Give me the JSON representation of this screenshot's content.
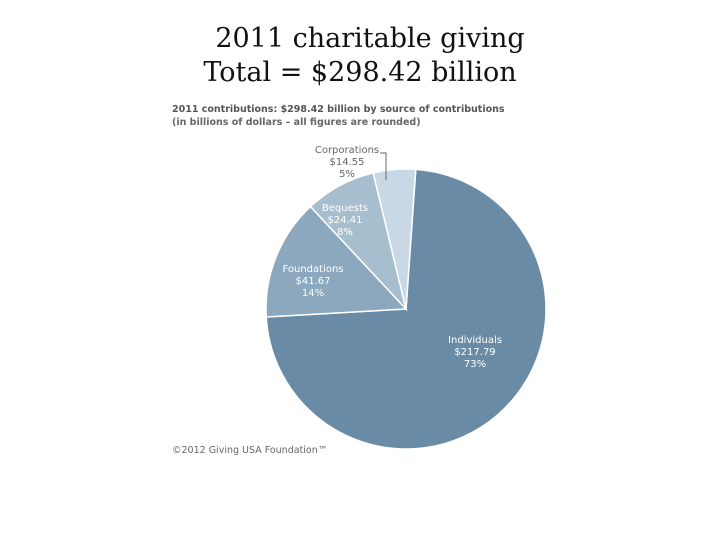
{
  "slide": {
    "title_line1": "2011 charitable giving",
    "title_line2": "Total = $298.42 billion"
  },
  "chart_data": {
    "type": "pie",
    "title": "2011 contributions: $298.42 billion by source of contributions",
    "subtitle": "(in billions of dollars – all figures are rounded)",
    "unit": "billions of dollars",
    "slices": [
      {
        "name": "Individuals",
        "value": 217.79,
        "value_label": "$217.79",
        "percent_label": "73%",
        "color": "#6a8ba6"
      },
      {
        "name": "Foundations",
        "value": 41.67,
        "value_label": "$41.67",
        "percent_label": "14%",
        "color": "#8ba8bf"
      },
      {
        "name": "Bequests",
        "value": 24.41,
        "value_label": "$24.41",
        "percent_label": "8%",
        "color": "#a6bece"
      },
      {
        "name": "Corporations",
        "value": 14.55,
        "value_label": "$14.55",
        "percent_label": "5%",
        "color": "#c8d9e5"
      }
    ],
    "footer": "©2012 Giving USA Foundation™"
  }
}
